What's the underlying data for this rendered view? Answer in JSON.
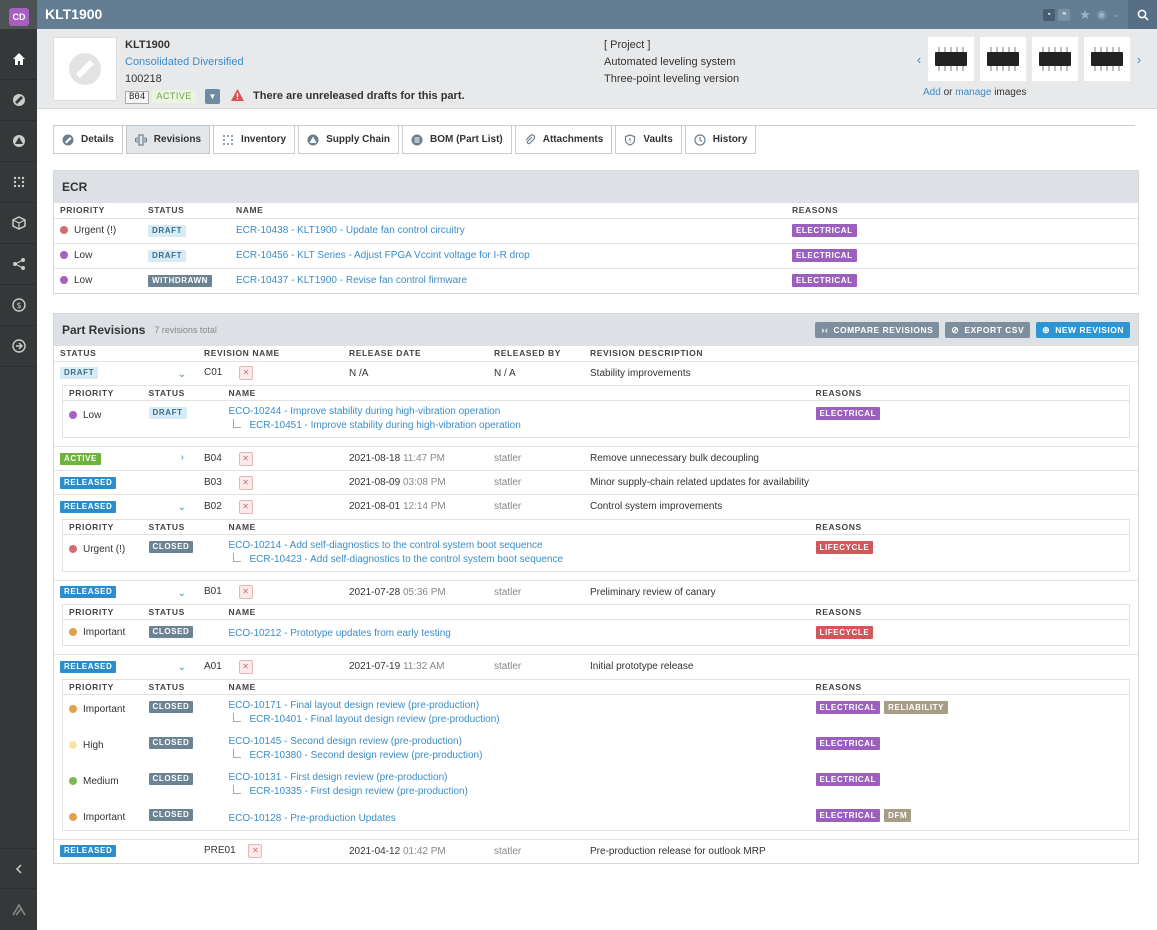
{
  "sidebar": {
    "avatar": "CD"
  },
  "topbar": {
    "title": "KLT1900"
  },
  "part": {
    "number": "KLT1900",
    "company": "Consolidated Diversified",
    "id": "100218",
    "revision": "B04",
    "status": "ACTIVE",
    "warning": "There are unreleased drafts for this part.",
    "project_label": "[ Project ]",
    "description1": "Automated leveling system",
    "description2": "Three-point leveling version"
  },
  "images": {
    "add": "Add",
    "or": "or",
    "manage": "manage",
    "images": "images"
  },
  "tabs": [
    "Details",
    "Revisions",
    "Inventory",
    "Supply Chain",
    "BOM (Part List)",
    "Attachments",
    "Vaults",
    "History"
  ],
  "ecr": {
    "title": "ECR",
    "columns": [
      "PRIORITY",
      "STATUS",
      "NAME",
      "REASONS"
    ],
    "rows": [
      {
        "priority": "Urgent (!)",
        "status": "DRAFT",
        "name": "ECR-10438 - KLT1900 - Update fan control circuitry",
        "reason": "ELECTRICAL"
      },
      {
        "priority": "Low",
        "status": "DRAFT",
        "name": "ECR-10456 - KLT Series - Adjust FPGA Vccint voltage for I-R drop",
        "reason": "ELECTRICAL"
      },
      {
        "priority": "Low",
        "status": "WITHDRAWN",
        "name": "ECR-10437 - KLT1900 - Revise fan control firmware",
        "reason": "ELECTRICAL"
      }
    ]
  },
  "revisions": {
    "title": "Part Revisions",
    "subtitle": "7 revisions total",
    "buttons": {
      "compare": "COMPARE REVISIONS",
      "export": "EXPORT CSV",
      "new": "NEW REVISION"
    },
    "columns": [
      "STATUS",
      "REVISION NAME",
      "RELEASE DATE",
      "RELEASED BY",
      "REVISION DESCRIPTION"
    ],
    "sub_columns": [
      "PRIORITY",
      "STATUS",
      "NAME",
      "REASONS"
    ],
    "rows": [
      {
        "status": "DRAFT",
        "name": "C01",
        "date": "N /A",
        "time": "",
        "by": "N / A",
        "desc": "Stability improvements"
      },
      {
        "status": "ACTIVE",
        "name": "B04",
        "date": "2021-08-18",
        "time": "11:47 PM",
        "by": "statler",
        "desc": "Remove unnecessary bulk decoupling"
      },
      {
        "status": "RELEASED",
        "name": "B03",
        "date": "2021-08-09",
        "time": "03:08 PM",
        "by": "statler",
        "desc": "Minor supply-chain related updates for availability"
      },
      {
        "status": "RELEASED",
        "name": "B02",
        "date": "2021-08-01",
        "time": "12:14 PM",
        "by": "statler",
        "desc": "Control system improvements"
      },
      {
        "status": "RELEASED",
        "name": "B01",
        "date": "2021-07-28",
        "time": "05:36 PM",
        "by": "statler",
        "desc": "Preliminary review of canary"
      },
      {
        "status": "RELEASED",
        "name": "A01",
        "date": "2021-07-19",
        "time": "11:32 AM",
        "by": "statler",
        "desc": "Initial prototype release"
      },
      {
        "status": "RELEASED",
        "name": "PRE01",
        "date": "2021-04-12",
        "time": "01:42 PM",
        "by": "statler",
        "desc": "Pre-production release for outlook MRP"
      }
    ],
    "c01_sub": [
      {
        "priority": "Low",
        "status": "DRAFT",
        "eco": "ECO-10244 - Improve stability during high-vibration operation",
        "ecr": "ECR-10451 - Improve stability during high-vibration operation",
        "reasons": [
          "ELECTRICAL"
        ]
      }
    ],
    "b02_sub": [
      {
        "priority": "Urgent (!)",
        "status": "CLOSED",
        "eco": "ECO-10214 - Add self-diagnostics to the control system boot sequence",
        "ecr": "ECR-10423 - Add self-diagnostics to the control system boot sequence",
        "reasons": [
          "LIFECYCLE"
        ]
      }
    ],
    "b01_sub": [
      {
        "priority": "Important",
        "status": "CLOSED",
        "eco": "ECO-10212 - Prototype updates from early testing",
        "reasons": [
          "LIFECYCLE"
        ]
      }
    ],
    "a01_sub": [
      {
        "priority": "Important",
        "status": "CLOSED",
        "eco": "ECO-10171 - Final layout design review (pre-production)",
        "ecr": "ECR-10401 - Final layout design review (pre-production)",
        "reasons": [
          "ELECTRICAL",
          "RELIABILITY"
        ]
      },
      {
        "priority": "High",
        "status": "CLOSED",
        "eco": "ECO-10145 - Second design review (pre-production)",
        "ecr": "ECR-10380 - Second design review (pre-production)",
        "reasons": [
          "ELECTRICAL"
        ]
      },
      {
        "priority": "Medium",
        "status": "CLOSED",
        "eco": "ECO-10131 - First design review (pre-production)",
        "ecr": "ECR-10335 - First design review (pre-production)",
        "reasons": [
          "ELECTRICAL"
        ]
      },
      {
        "priority": "Important",
        "status": "CLOSED",
        "eco": "ECO-10128 - Pre-production Updates",
        "reasons": [
          "ELECTRICAL",
          "DFM"
        ]
      }
    ]
  },
  "colors": {
    "urgent": "#d56b6b",
    "low": "#a660c1",
    "important": "#e3a24a",
    "high": "#f3e6a6",
    "medium": "#7db84f"
  }
}
